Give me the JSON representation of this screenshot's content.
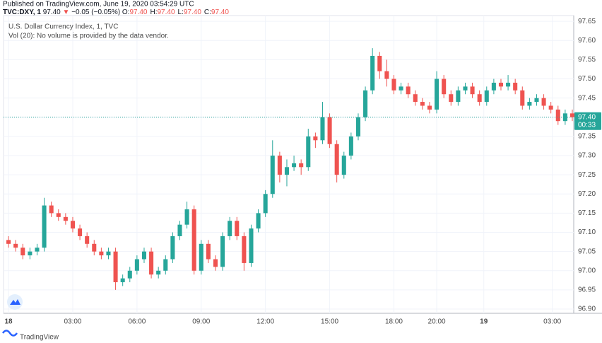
{
  "header": {
    "published": "Published on TradingView.com, June 19, 2020 03:54:29 UTC",
    "symbol": "TVC:DXY, 1",
    "last": "97.40",
    "arrow": "▼",
    "change": "−0.05 (−0.05%)",
    "ohlc": [
      {
        "key": "O:",
        "value": "97.40"
      },
      {
        "key": "H:",
        "value": "97.40"
      },
      {
        "key": "L:",
        "value": "97.40"
      },
      {
        "key": "C:",
        "value": "97.40"
      }
    ]
  },
  "footer": {
    "brand": "TradingView"
  },
  "chart_data": {
    "type": "candlestick",
    "title": "U.S. Dollar Currency Index, 1, TVC",
    "subtitle": "Vol (20): No volume is provided by the data vendor.",
    "up_color": "#26a69a",
    "down_color": "#ef5350",
    "grid": true,
    "x": [
      0,
      20,
      40,
      60,
      80,
      100,
      120,
      140,
      160,
      180,
      200,
      220,
      240,
      260,
      280,
      300,
      320,
      340,
      360,
      380,
      400,
      420,
      440,
      460,
      480,
      500,
      520,
      540,
      560,
      580,
      600,
      620,
      640,
      660,
      680,
      700,
      720,
      740,
      760,
      780,
      800,
      820,
      840,
      860,
      880,
      900,
      920,
      940,
      960,
      980,
      1000,
      1020,
      1040,
      1060,
      1080,
      1100,
      1120,
      1140,
      1160,
      1180,
      1200,
      1220,
      1240,
      1260,
      1280,
      1300,
      1320,
      1340,
      1360,
      1380,
      1400,
      1420,
      1440,
      1460,
      1480,
      1500,
      1520,
      1540,
      1560,
      1580
    ],
    "open": [
      97.08,
      97.07,
      97.06,
      97.04,
      97.05,
      97.06,
      97.17,
      97.15,
      97.14,
      97.13,
      97.11,
      97.09,
      97.07,
      97.05,
      97.04,
      97.05,
      96.97,
      96.98,
      97.0,
      97.03,
      97.05,
      96.99,
      97.0,
      97.03,
      97.09,
      97.12,
      97.16,
      97.0,
      97.07,
      97.03,
      97.01,
      97.09,
      97.13,
      97.09,
      97.02,
      97.11,
      97.15,
      97.2,
      97.3,
      97.25,
      97.27,
      97.28,
      97.27,
      97.35,
      97.34,
      97.4,
      97.33,
      97.25,
      97.3,
      97.35,
      97.4,
      97.47,
      97.56,
      97.52,
      97.5,
      97.47,
      97.48,
      97.46,
      97.44,
      97.43,
      97.42,
      97.5,
      97.46,
      97.44,
      97.47,
      97.48,
      97.46,
      97.44,
      97.47,
      97.49,
      97.48,
      97.49,
      97.47,
      97.43,
      97.44,
      97.45,
      97.43,
      97.42,
      97.39,
      97.41
    ],
    "high": [
      97.09,
      97.08,
      97.07,
      97.06,
      97.07,
      97.19,
      97.18,
      97.16,
      97.15,
      97.14,
      97.12,
      97.1,
      97.08,
      97.06,
      97.06,
      97.06,
      96.99,
      97.01,
      97.04,
      97.06,
      97.06,
      97.01,
      97.04,
      97.1,
      97.13,
      97.18,
      97.17,
      97.08,
      97.08,
      97.04,
      97.1,
      97.14,
      97.14,
      97.1,
      97.12,
      97.16,
      97.21,
      97.34,
      97.31,
      97.29,
      97.3,
      97.29,
      97.37,
      97.36,
      97.44,
      97.41,
      97.34,
      97.31,
      97.36,
      97.41,
      97.48,
      97.58,
      97.57,
      97.55,
      97.51,
      97.49,
      97.49,
      97.47,
      97.45,
      97.44,
      97.52,
      97.51,
      97.47,
      97.48,
      97.49,
      97.49,
      97.47,
      97.48,
      97.5,
      97.5,
      97.51,
      97.5,
      97.48,
      97.45,
      97.46,
      97.46,
      97.44,
      97.43,
      97.42,
      97.42
    ],
    "low": [
      97.06,
      97.05,
      97.03,
      97.03,
      97.04,
      97.05,
      97.14,
      97.13,
      97.12,
      97.1,
      97.08,
      97.06,
      97.04,
      97.03,
      97.03,
      96.95,
      96.96,
      96.97,
      96.99,
      97.02,
      96.98,
      96.98,
      96.99,
      97.02,
      97.08,
      97.11,
      96.99,
      96.99,
      97.02,
      97.0,
      97.0,
      97.08,
      97.08,
      97.0,
      97.01,
      97.1,
      97.14,
      97.19,
      97.23,
      97.22,
      97.26,
      97.25,
      97.26,
      97.32,
      97.33,
      97.32,
      97.23,
      97.24,
      97.29,
      97.34,
      97.39,
      97.46,
      97.5,
      97.48,
      97.46,
      97.46,
      97.45,
      97.43,
      97.42,
      97.41,
      97.41,
      97.45,
      97.43,
      97.43,
      97.46,
      97.45,
      97.43,
      97.43,
      97.46,
      97.47,
      97.47,
      97.46,
      97.42,
      97.42,
      97.43,
      97.42,
      97.41,
      97.38,
      97.38,
      97.39
    ],
    "close": [
      97.07,
      97.06,
      97.04,
      97.05,
      97.06,
      97.17,
      97.15,
      97.14,
      97.13,
      97.11,
      97.09,
      97.07,
      97.05,
      97.04,
      97.05,
      96.97,
      96.98,
      97.0,
      97.03,
      97.05,
      96.99,
      97.0,
      97.03,
      97.09,
      97.12,
      97.16,
      97.0,
      97.07,
      97.03,
      97.01,
      97.09,
      97.13,
      97.09,
      97.02,
      97.11,
      97.15,
      97.2,
      97.3,
      97.25,
      97.27,
      97.28,
      97.27,
      97.35,
      97.34,
      97.4,
      97.33,
      97.25,
      97.3,
      97.35,
      97.4,
      97.47,
      97.56,
      97.52,
      97.5,
      97.47,
      97.48,
      97.46,
      97.44,
      97.43,
      97.42,
      97.5,
      97.46,
      97.44,
      97.47,
      97.48,
      97.46,
      97.44,
      97.47,
      97.49,
      97.48,
      97.49,
      97.47,
      97.43,
      97.44,
      97.45,
      97.43,
      97.42,
      97.39,
      97.41,
      97.4
    ],
    "xlim": [
      -14,
      1584
    ],
    "xticks": [
      {
        "value": 0,
        "label": "18"
      },
      {
        "value": 180,
        "label": "03:00"
      },
      {
        "value": 360,
        "label": "06:00"
      },
      {
        "value": 540,
        "label": "09:00"
      },
      {
        "value": 720,
        "label": "12:00"
      },
      {
        "value": 900,
        "label": "15:00"
      },
      {
        "value": 1080,
        "label": "18:00"
      },
      {
        "value": 1200,
        "label": "20:00"
      },
      {
        "value": 1332,
        "label": "19"
      },
      {
        "value": 1524,
        "label": "03:00"
      }
    ],
    "ylim": [
      96.889,
      97.665
    ],
    "yticks": [
      {
        "value": 96.9,
        "label": "96.90"
      },
      96.95,
      {
        "value": 97,
        "label": "97.00"
      },
      97.05,
      {
        "value": 97.1,
        "label": "97.10"
      },
      97.15,
      {
        "value": 97.2,
        "label": "97.20"
      },
      97.25,
      {
        "value": 97.3,
        "label": "97.30"
      },
      97.35,
      {
        "value": 97.4,
        "label": "97.40"
      },
      97.45,
      {
        "value": 97.5,
        "label": "97.50"
      },
      97.55,
      {
        "value": 97.6,
        "label": "97.60"
      },
      97.65
    ],
    "last_price": {
      "value": 97.4,
      "label": "97.40"
    },
    "countdown": "00:33",
    "price_line_color": "#26a69a"
  }
}
